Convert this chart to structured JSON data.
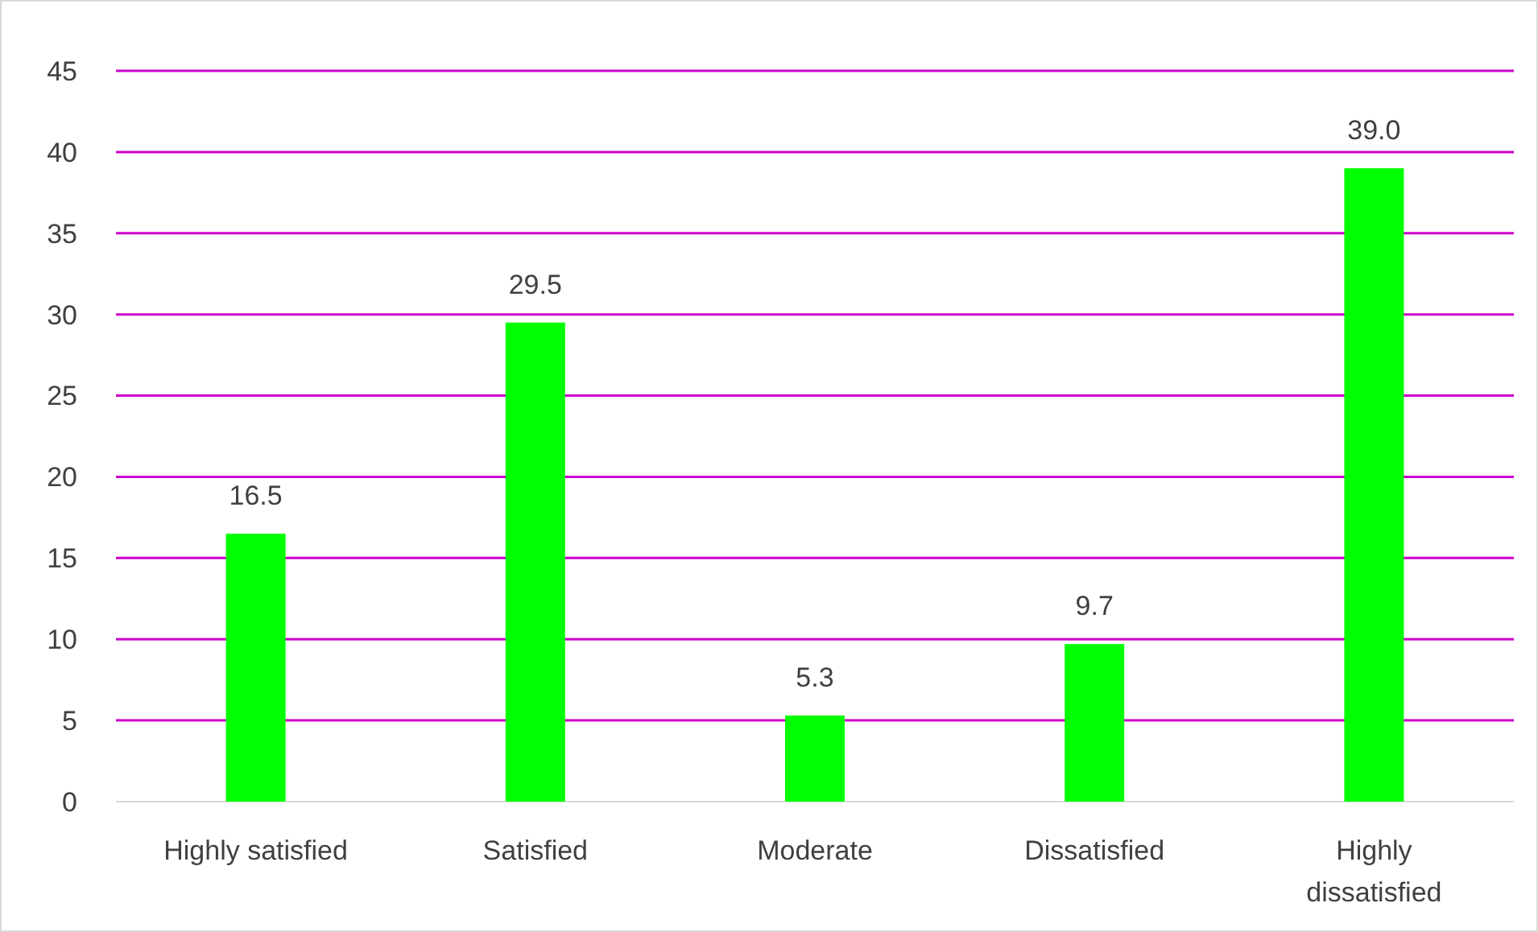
{
  "chart_data": {
    "type": "bar",
    "categories": [
      "Highly satisfied",
      "Satisfied",
      "Moderate",
      "Dissatisfied",
      "Highly dissatisfied"
    ],
    "values": [
      16.5,
      29.5,
      5.3,
      9.7,
      39.0
    ],
    "value_labels": [
      "16.5",
      "29.5",
      "5.3",
      "9.7",
      "39.0"
    ],
    "color": "#00ff00",
    "ylim": [
      0,
      45
    ],
    "yticks": [
      0,
      5,
      10,
      15,
      20,
      25,
      30,
      35,
      40,
      45
    ],
    "grid": "y"
  }
}
